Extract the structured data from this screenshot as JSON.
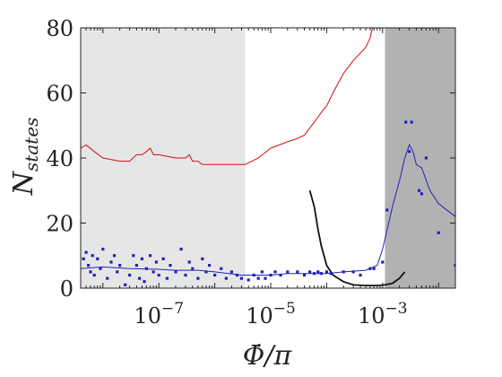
{
  "chart_data": {
    "type": "line",
    "xscale": "log",
    "xlim": [
      4e-09,
      0.02
    ],
    "ylim": [
      0,
      80
    ],
    "xlabel_main": "Φ̇/π",
    "ylabel_main": "N",
    "ylabel_sub": "states",
    "x_ticks": [
      {
        "value": 1e-07,
        "base": "10",
        "exp": "−7"
      },
      {
        "value": 1e-05,
        "base": "10",
        "exp": "−5"
      },
      {
        "value": 0.001,
        "base": "10",
        "exp": "−3"
      }
    ],
    "y_ticks": [
      0,
      20,
      40,
      60,
      80
    ],
    "shaded_regions": [
      {
        "x_from": 4e-09,
        "x_to": 3.5e-06,
        "color": "#e6e6e6"
      },
      {
        "x_from": 0.0011,
        "x_to": 0.02,
        "color": "#b2b2b2"
      }
    ],
    "series": [
      {
        "color": "#cc1111",
        "style": "line",
        "points": [
          [
            4e-09,
            43
          ],
          [
            5e-09,
            44
          ],
          [
            7e-09,
            42
          ],
          [
            1e-08,
            40
          ],
          [
            2e-08,
            39
          ],
          [
            3e-08,
            39
          ],
          [
            4e-08,
            41
          ],
          [
            5e-08,
            41
          ],
          [
            6e-08,
            42
          ],
          [
            7e-08,
            43
          ],
          [
            8e-08,
            41
          ],
          [
            1e-07,
            41
          ],
          [
            2e-07,
            40
          ],
          [
            3e-07,
            40
          ],
          [
            3.5e-07,
            41
          ],
          [
            4e-07,
            39
          ],
          [
            5e-07,
            39
          ],
          [
            6e-07,
            38
          ],
          [
            1e-06,
            38
          ],
          [
            2e-06,
            38
          ],
          [
            3.5e-06,
            38
          ],
          [
            4e-06,
            38.5
          ],
          [
            6e-06,
            40
          ],
          [
            1e-05,
            43
          ],
          [
            2e-05,
            45
          ],
          [
            3e-05,
            46
          ],
          [
            4e-05,
            47
          ],
          [
            6e-05,
            51
          ],
          [
            8e-05,
            54
          ],
          [
            0.0001,
            56
          ],
          [
            0.00013,
            60
          ],
          [
            0.00016,
            63
          ],
          [
            0.0002,
            66
          ],
          [
            0.0003,
            70
          ],
          [
            0.0005,
            74
          ],
          [
            0.0006,
            77
          ],
          [
            0.0007,
            82
          ]
        ]
      },
      {
        "color": "#111111",
        "style": "line",
        "points": [
          [
            5e-05,
            30
          ],
          [
            6e-05,
            25
          ],
          [
            7e-05,
            18
          ],
          [
            8e-05,
            13
          ],
          [
            0.0001,
            7
          ],
          [
            0.00013,
            4
          ],
          [
            0.0002,
            2
          ],
          [
            0.0003,
            1
          ],
          [
            0.0005,
            0.8
          ],
          [
            0.0008,
            0.8
          ],
          [
            0.0011,
            1
          ],
          [
            0.0015,
            1.5
          ],
          [
            0.002,
            3
          ],
          [
            0.0025,
            5
          ]
        ]
      },
      {
        "color": "#2222bb",
        "style": "line",
        "points": [
          [
            4e-09,
            6
          ],
          [
            1e-08,
            6.5
          ],
          [
            3e-08,
            6
          ],
          [
            1e-07,
            5.8
          ],
          [
            2e-07,
            5.5
          ],
          [
            5e-07,
            5.5
          ],
          [
            1e-06,
            5
          ],
          [
            3e-06,
            4
          ],
          [
            5e-06,
            4
          ],
          [
            1e-05,
            4
          ],
          [
            2e-05,
            4.5
          ],
          [
            5e-05,
            4.5
          ],
          [
            0.0001,
            4.5
          ],
          [
            0.0002,
            5
          ],
          [
            0.0005,
            5.5
          ],
          [
            0.0008,
            7
          ],
          [
            0.001,
            12
          ],
          [
            0.0015,
            25
          ],
          [
            0.002,
            33
          ],
          [
            0.0025,
            40
          ],
          [
            0.003,
            44
          ],
          [
            0.0035,
            42
          ],
          [
            0.004,
            38
          ],
          [
            0.005,
            37
          ],
          [
            0.007,
            30
          ],
          [
            0.01,
            26
          ],
          [
            0.02,
            22
          ]
        ]
      },
      {
        "color": "#2222bb",
        "style": "scatter",
        "points": [
          [
            4.5e-09,
            9
          ],
          [
            5e-09,
            11
          ],
          [
            5.5e-09,
            7
          ],
          [
            6e-09,
            5
          ],
          [
            6.5e-09,
            10
          ],
          [
            7e-09,
            4
          ],
          [
            8e-09,
            9
          ],
          [
            9e-09,
            6
          ],
          [
            1e-08,
            12
          ],
          [
            1.2e-08,
            3
          ],
          [
            1.4e-08,
            8
          ],
          [
            1.6e-08,
            10
          ],
          [
            1.8e-08,
            5
          ],
          [
            2e-08,
            7
          ],
          [
            2.5e-08,
            1
          ],
          [
            3e-08,
            4
          ],
          [
            3.5e-08,
            10
          ],
          [
            4e-08,
            7
          ],
          [
            4.5e-08,
            3
          ],
          [
            5e-08,
            9
          ],
          [
            5.5e-08,
            2
          ],
          [
            6e-08,
            6
          ],
          [
            7e-08,
            10
          ],
          [
            8e-08,
            5
          ],
          [
            9e-08,
            8
          ],
          [
            1e-07,
            4
          ],
          [
            1.2e-07,
            9
          ],
          [
            1.4e-07,
            3
          ],
          [
            1.6e-07,
            7
          ],
          [
            2e-07,
            5
          ],
          [
            2.5e-07,
            12
          ],
          [
            3e-07,
            4
          ],
          [
            3.5e-07,
            8
          ],
          [
            4e-07,
            6
          ],
          [
            5e-07,
            3
          ],
          [
            6e-07,
            9
          ],
          [
            7e-07,
            5
          ],
          [
            8e-07,
            7
          ],
          [
            1e-06,
            4
          ],
          [
            1.3e-06,
            6
          ],
          [
            1.6e-06,
            3
          ],
          [
            2e-06,
            5
          ],
          [
            2.5e-06,
            4
          ],
          [
            3e-06,
            3
          ],
          [
            4e-06,
            2.5
          ],
          [
            5e-06,
            4
          ],
          [
            6e-06,
            3
          ],
          [
            7e-06,
            5
          ],
          [
            8e-06,
            3
          ],
          [
            1e-05,
            4
          ],
          [
            1.2e-05,
            5
          ],
          [
            1.5e-05,
            4
          ],
          [
            2e-05,
            5
          ],
          [
            3e-05,
            5
          ],
          [
            4e-05,
            4
          ],
          [
            5e-05,
            5
          ],
          [
            6e-05,
            4.5
          ],
          [
            7e-05,
            5
          ],
          [
            8e-05,
            4.5
          ],
          [
            0.0001,
            5
          ],
          [
            0.00012,
            4.5
          ],
          [
            0.0002,
            5
          ],
          [
            0.0003,
            5
          ],
          [
            0.0004,
            4
          ],
          [
            0.0006,
            6
          ],
          [
            0.0007,
            6
          ],
          [
            0.001,
            8
          ],
          [
            0.0012,
            24
          ],
          [
            0.0026,
            51
          ],
          [
            0.003,
            42
          ],
          [
            0.0033,
            51
          ],
          [
            0.0045,
            30
          ],
          [
            0.005,
            29
          ],
          [
            0.006,
            40
          ],
          [
            0.01,
            17
          ],
          [
            0.02,
            7
          ]
        ]
      }
    ]
  }
}
